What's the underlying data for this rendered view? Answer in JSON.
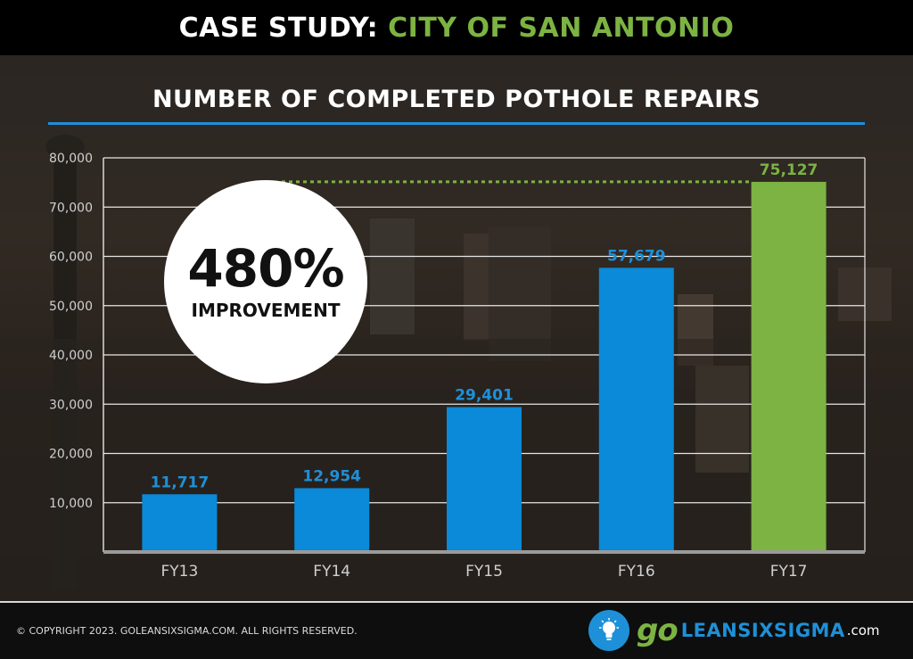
{
  "header": {
    "prefix": "CASE STUDY:",
    "highlight": "CITY OF SAN ANTONIO"
  },
  "badge": {
    "value": "480%",
    "label": "IMPROVEMENT"
  },
  "footer": {
    "copyright": "© COPYRIGHT 2023. GOLEANSIXSIGMA.COM. ALL RIGHTS RESERVED.",
    "logo_go": "go",
    "logo_name": "LEANSIXSIGMA",
    "logo_suffix": ".com"
  },
  "icons": {
    "logo": "lightbulb-icon"
  },
  "colors": {
    "accent_blue": "#1e90d8",
    "accent_green": "#7cb342",
    "bar_blue": "#0a8ad8",
    "bar_green": "#7cb342"
  },
  "chart_data": {
    "type": "bar",
    "title": "NUMBER OF COMPLETED POTHOLE REPAIRS",
    "categories": [
      "FY13",
      "FY14",
      "FY15",
      "FY16",
      "FY17"
    ],
    "values": [
      11717,
      12954,
      29401,
      57679,
      75127
    ],
    "value_labels": [
      "11,717",
      "12,954",
      "29,401",
      "57,679",
      "75,127"
    ],
    "highlight_index": 4,
    "yticks": [
      10000,
      20000,
      30000,
      40000,
      50000,
      60000,
      70000,
      80000
    ],
    "ytick_labels": [
      "10,000",
      "20,000",
      "30,000",
      "40,000",
      "50,000",
      "60,000",
      "70,000",
      "80,000"
    ],
    "ylim": [
      0,
      80000
    ],
    "grid": true,
    "reference_line": 75127,
    "xlabel": "",
    "ylabel": ""
  }
}
